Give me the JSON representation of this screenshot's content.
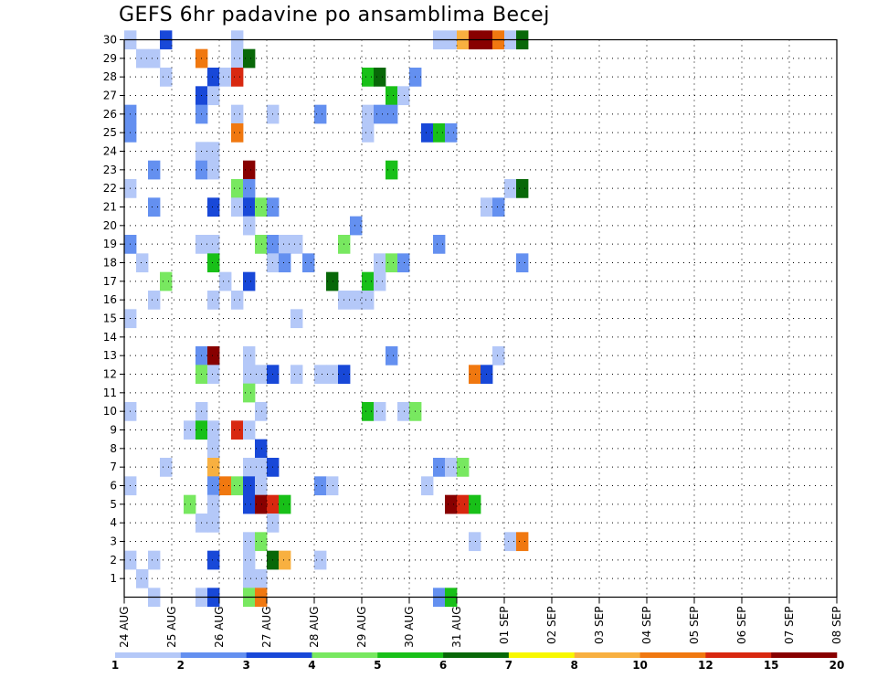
{
  "chart_data": {
    "type": "heatmap",
    "title": "GEFS 6hr padavine po ansamblima Becej",
    "x_ticks": [
      "24 AUG",
      "25 AUG",
      "26 AUG",
      "27 AUG",
      "28 AUG",
      "29 AUG",
      "30 AUG",
      "31 AUG",
      "01 SEP",
      "02 SEP",
      "03 SEP",
      "04 SEP",
      "05 SEP",
      "06 SEP",
      "07 SEP",
      "08 SEP"
    ],
    "y_ticks": [
      "1",
      "2",
      "3",
      "4",
      "5",
      "6",
      "7",
      "8",
      "9",
      "10",
      "11",
      "12",
      "13",
      "14",
      "15",
      "16",
      "17",
      "18",
      "19",
      "20",
      "21",
      "22",
      "23",
      "24",
      "25",
      "26",
      "27",
      "28",
      "29",
      "30"
    ],
    "y_range": [
      0,
      30
    ],
    "steps_per_day": 4,
    "grid": "dotted",
    "colorbar": {
      "labels": [
        "1",
        "2",
        "3",
        "4",
        "5",
        "6",
        "7",
        "8",
        "10",
        "12",
        "15",
        "20"
      ],
      "colors": [
        "#b4c8f8",
        "#6490f0",
        "#1848d8",
        "#78e860",
        "#18c018",
        "#086808",
        "#f8f800",
        "#f8b040",
        "#f07810",
        "#d82810",
        "#880000"
      ]
    },
    "cells": [
      [
        0,
        30,
        1
      ],
      [
        3,
        30,
        3
      ],
      [
        9,
        30,
        1
      ],
      [
        26,
        30,
        1
      ],
      [
        27,
        30,
        1
      ],
      [
        28,
        30,
        8
      ],
      [
        29,
        30,
        11
      ],
      [
        30,
        30,
        11
      ],
      [
        31,
        30,
        9
      ],
      [
        32,
        30,
        1
      ],
      [
        33,
        30,
        6
      ],
      [
        1,
        29,
        1
      ],
      [
        2,
        29,
        1
      ],
      [
        6,
        29,
        9
      ],
      [
        9,
        29,
        1
      ],
      [
        10,
        29,
        6
      ],
      [
        3,
        28,
        1
      ],
      [
        7,
        28,
        3
      ],
      [
        8,
        28,
        1
      ],
      [
        9,
        28,
        10
      ],
      [
        20,
        28,
        5
      ],
      [
        21,
        28,
        6
      ],
      [
        24,
        28,
        2
      ],
      [
        6,
        27,
        3
      ],
      [
        7,
        27,
        1
      ],
      [
        22,
        27,
        5
      ],
      [
        23,
        27,
        1
      ],
      [
        0,
        26,
        2
      ],
      [
        6,
        26,
        2
      ],
      [
        9,
        26,
        1
      ],
      [
        12,
        26,
        1
      ],
      [
        16,
        26,
        2
      ],
      [
        20,
        26,
        1
      ],
      [
        21,
        26,
        2
      ],
      [
        22,
        26,
        2
      ],
      [
        0,
        25,
        2
      ],
      [
        9,
        25,
        9
      ],
      [
        20,
        25,
        1
      ],
      [
        25,
        25,
        3
      ],
      [
        26,
        25,
        5
      ],
      [
        27,
        25,
        2
      ],
      [
        6,
        24,
        1
      ],
      [
        7,
        24,
        1
      ],
      [
        2,
        23,
        2
      ],
      [
        6,
        23,
        2
      ],
      [
        7,
        23,
        1
      ],
      [
        10,
        23,
        11
      ],
      [
        22,
        23,
        5
      ],
      [
        0,
        22,
        1
      ],
      [
        9,
        22,
        4
      ],
      [
        10,
        22,
        2
      ],
      [
        32,
        22,
        1
      ],
      [
        33,
        22,
        6
      ],
      [
        2,
        21,
        2
      ],
      [
        7,
        21,
        3
      ],
      [
        9,
        21,
        1
      ],
      [
        10,
        21,
        3
      ],
      [
        11,
        21,
        4
      ],
      [
        12,
        21,
        2
      ],
      [
        30,
        21,
        1
      ],
      [
        31,
        21,
        2
      ],
      [
        10,
        20,
        1
      ],
      [
        19,
        20,
        2
      ],
      [
        0,
        19,
        2
      ],
      [
        6,
        19,
        1
      ],
      [
        7,
        19,
        1
      ],
      [
        11,
        19,
        4
      ],
      [
        12,
        19,
        2
      ],
      [
        13,
        19,
        1
      ],
      [
        14,
        19,
        1
      ],
      [
        18,
        19,
        4
      ],
      [
        26,
        19,
        2
      ],
      [
        1,
        18,
        1
      ],
      [
        7,
        18,
        5
      ],
      [
        12,
        18,
        1
      ],
      [
        13,
        18,
        2
      ],
      [
        15,
        18,
        2
      ],
      [
        21,
        18,
        1
      ],
      [
        22,
        18,
        4
      ],
      [
        23,
        18,
        2
      ],
      [
        33,
        18,
        2
      ],
      [
        3,
        17,
        4
      ],
      [
        8,
        17,
        1
      ],
      [
        10,
        17,
        3
      ],
      [
        17,
        17,
        6
      ],
      [
        20,
        17,
        5
      ],
      [
        21,
        17,
        1
      ],
      [
        2,
        16,
        1
      ],
      [
        7,
        16,
        1
      ],
      [
        9,
        16,
        1
      ],
      [
        18,
        16,
        1
      ],
      [
        19,
        16,
        1
      ],
      [
        20,
        16,
        1
      ],
      [
        0,
        15,
        1
      ],
      [
        14,
        15,
        1
      ],
      [
        6,
        13,
        2
      ],
      [
        7,
        13,
        11
      ],
      [
        10,
        13,
        1
      ],
      [
        22,
        13,
        2
      ],
      [
        31,
        13,
        1
      ],
      [
        6,
        12,
        4
      ],
      [
        7,
        12,
        1
      ],
      [
        10,
        12,
        1
      ],
      [
        11,
        12,
        1
      ],
      [
        12,
        12,
        3
      ],
      [
        14,
        12,
        1
      ],
      [
        16,
        12,
        1
      ],
      [
        17,
        12,
        1
      ],
      [
        18,
        12,
        3
      ],
      [
        29,
        12,
        9
      ],
      [
        30,
        12,
        3
      ],
      [
        10,
        11,
        4
      ],
      [
        0,
        10,
        1
      ],
      [
        6,
        10,
        1
      ],
      [
        11,
        10,
        1
      ],
      [
        20,
        10,
        5
      ],
      [
        21,
        10,
        1
      ],
      [
        23,
        10,
        1
      ],
      [
        24,
        10,
        4
      ],
      [
        5,
        9,
        1
      ],
      [
        6,
        9,
        5
      ],
      [
        7,
        9,
        1
      ],
      [
        9,
        9,
        10
      ],
      [
        10,
        9,
        1
      ],
      [
        7,
        8,
        1
      ],
      [
        11,
        8,
        3
      ],
      [
        3,
        7,
        1
      ],
      [
        7,
        7,
        8
      ],
      [
        10,
        7,
        1
      ],
      [
        11,
        7,
        1
      ],
      [
        12,
        7,
        3
      ],
      [
        26,
        7,
        2
      ],
      [
        27,
        7,
        1
      ],
      [
        28,
        7,
        4
      ],
      [
        0,
        6,
        1
      ],
      [
        7,
        6,
        2
      ],
      [
        8,
        6,
        9
      ],
      [
        9,
        6,
        4
      ],
      [
        10,
        6,
        3
      ],
      [
        11,
        6,
        1
      ],
      [
        16,
        6,
        2
      ],
      [
        17,
        6,
        1
      ],
      [
        25,
        6,
        1
      ],
      [
        5,
        5,
        4
      ],
      [
        7,
        5,
        1
      ],
      [
        10,
        5,
        3
      ],
      [
        11,
        5,
        11
      ],
      [
        12,
        5,
        10
      ],
      [
        13,
        5,
        5
      ],
      [
        27,
        5,
        11
      ],
      [
        28,
        5,
        10
      ],
      [
        29,
        5,
        5
      ],
      [
        6,
        4,
        1
      ],
      [
        7,
        4,
        1
      ],
      [
        12,
        4,
        1
      ],
      [
        10,
        3,
        1
      ],
      [
        11,
        3,
        4
      ],
      [
        29,
        3,
        1
      ],
      [
        32,
        3,
        1
      ],
      [
        33,
        3,
        9
      ],
      [
        0,
        2,
        1
      ],
      [
        2,
        2,
        1
      ],
      [
        7,
        2,
        3
      ],
      [
        10,
        2,
        1
      ],
      [
        12,
        2,
        6
      ],
      [
        13,
        2,
        8
      ],
      [
        16,
        2,
        1
      ],
      [
        1,
        1,
        1
      ],
      [
        10,
        1,
        1
      ],
      [
        11,
        1,
        1
      ],
      [
        2,
        0,
        1
      ],
      [
        6,
        0,
        1
      ],
      [
        7,
        0,
        3
      ],
      [
        10,
        0,
        4
      ],
      [
        11,
        0,
        9
      ],
      [
        26,
        0,
        2
      ],
      [
        27,
        0,
        5
      ]
    ]
  }
}
